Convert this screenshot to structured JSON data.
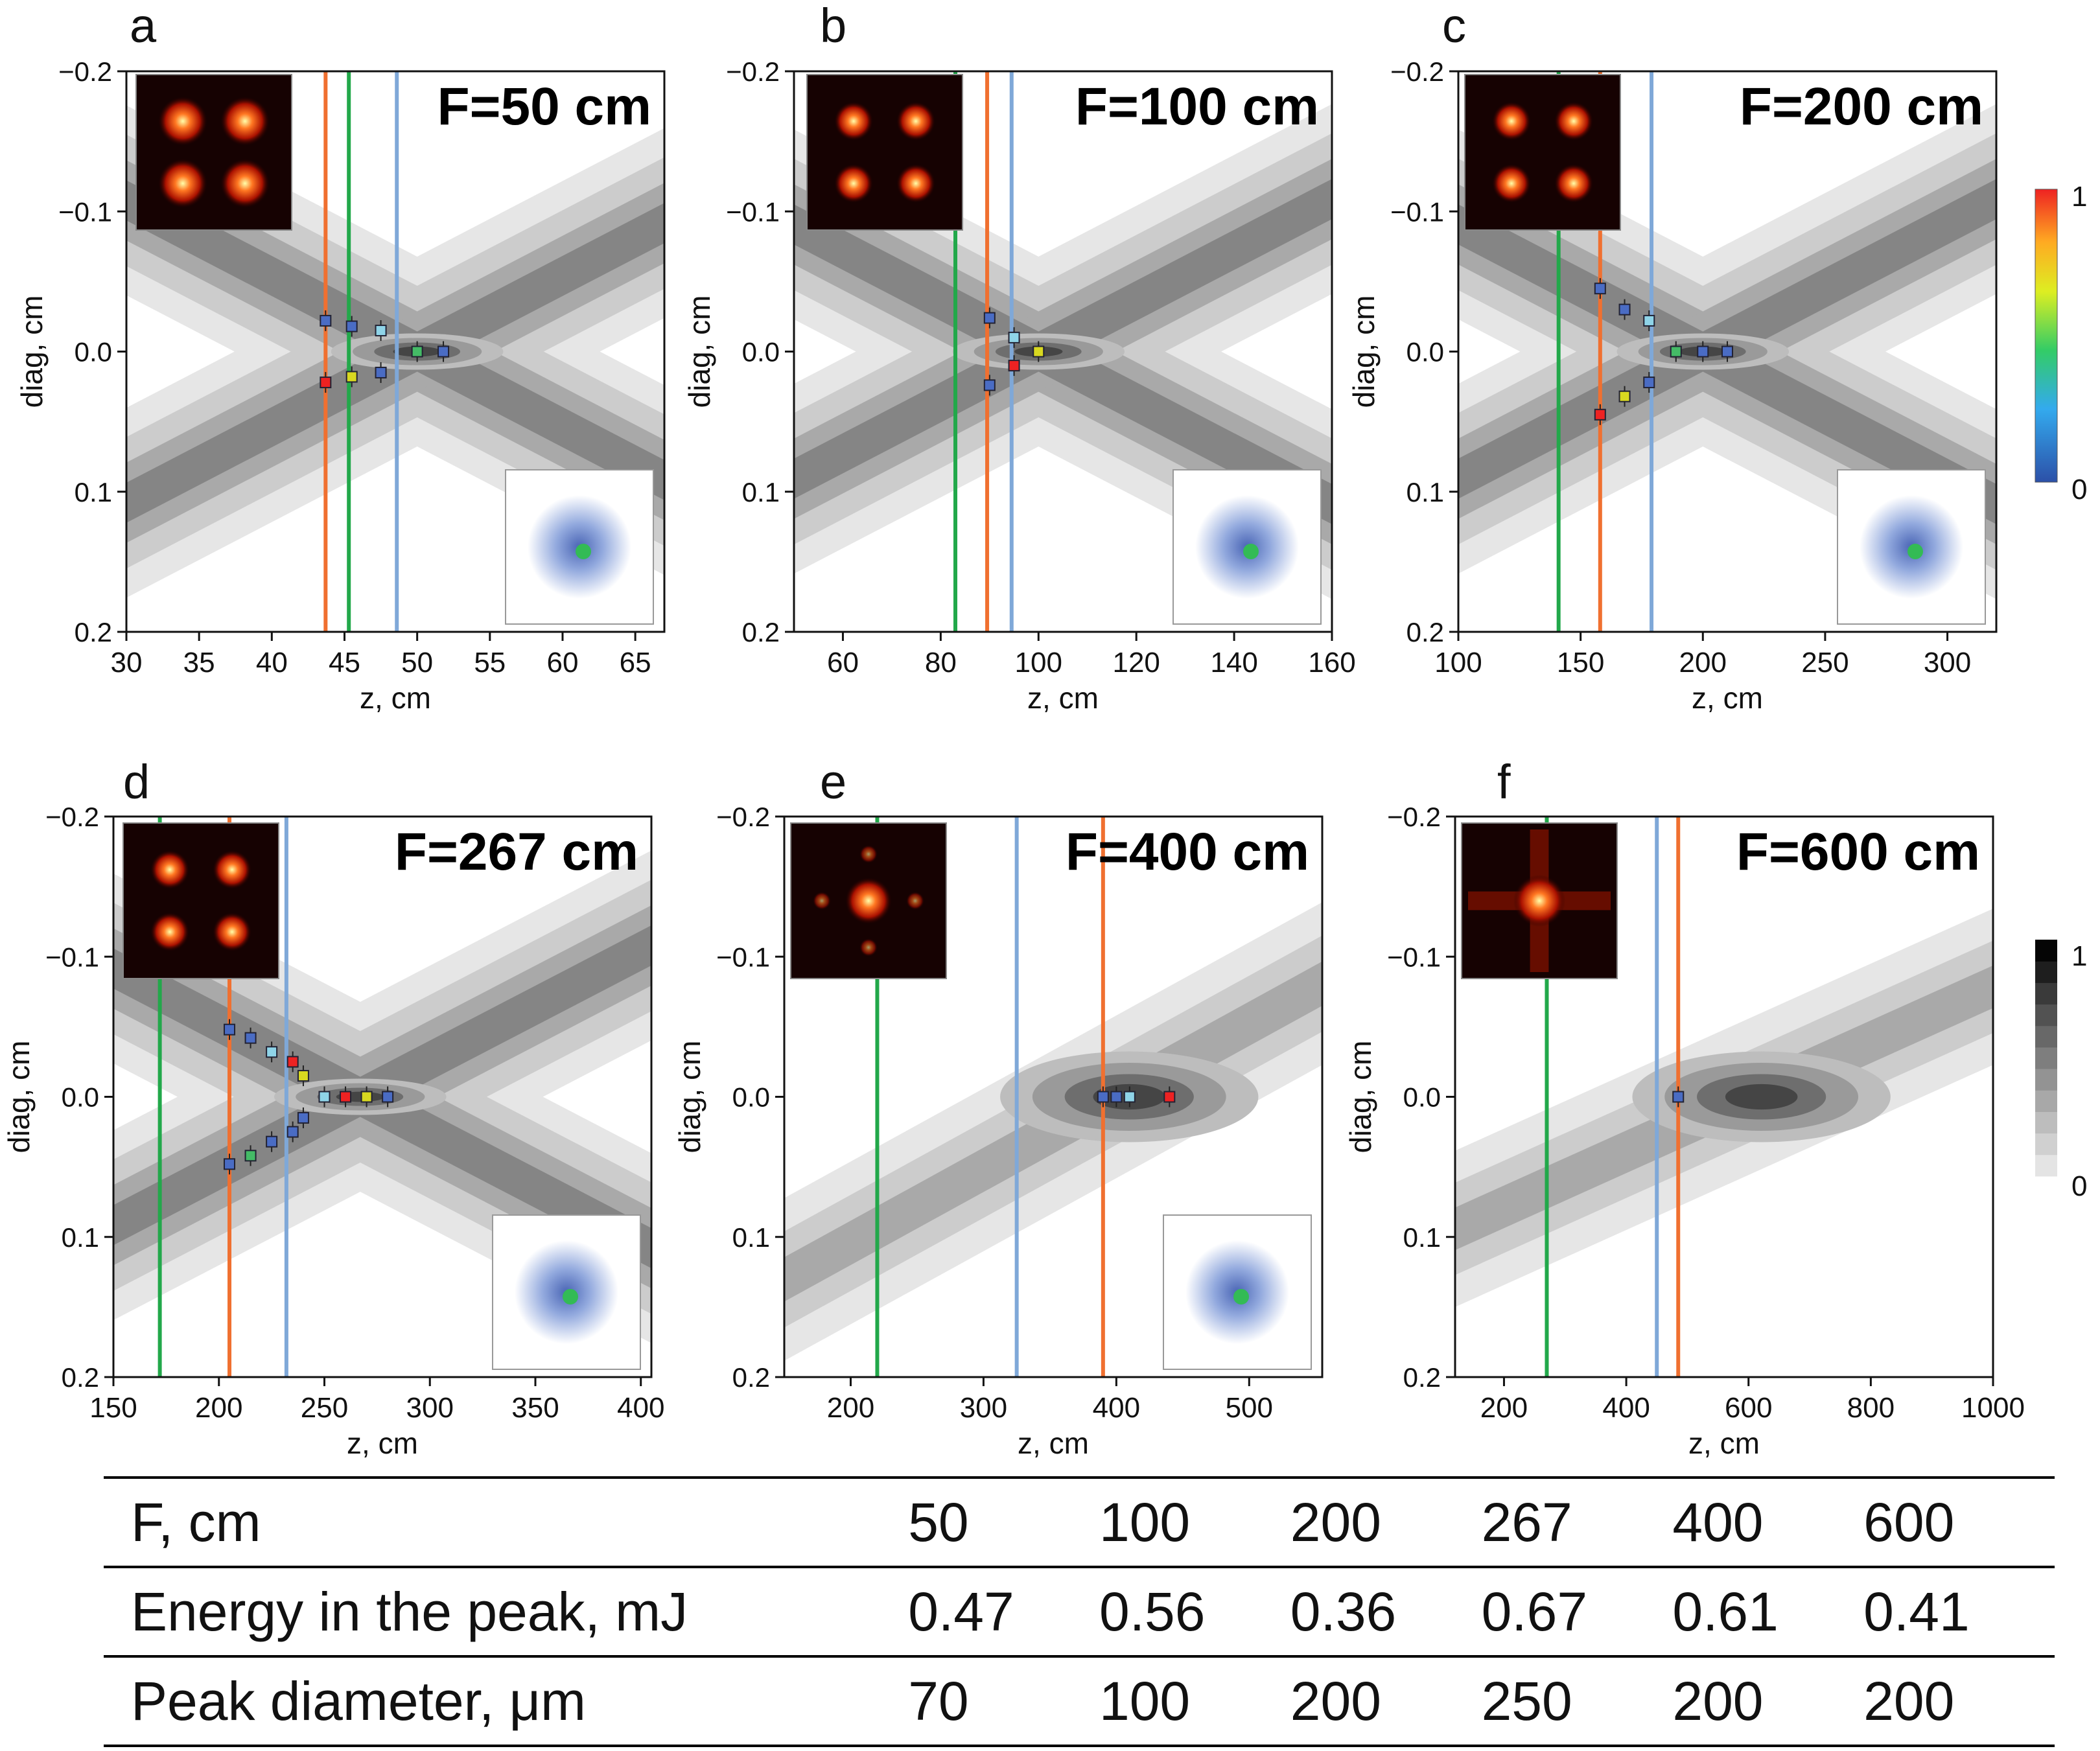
{
  "figure": {
    "colorbar_rainbow": {
      "max_label": "1",
      "min_label": "0"
    },
    "colorbar_gray": {
      "max_label": "1",
      "min_label": "0"
    },
    "colors": {
      "orange": "#f07030",
      "green": "#22a84a",
      "blue": "#7fa8d8"
    }
  },
  "chart_data": [
    {
      "type": "contour",
      "panel": "a",
      "title": "F=50 cm",
      "xlabel": "z, cm",
      "ylabel": "diag, cm",
      "xlim": [
        30,
        67
      ],
      "xticks": [
        30,
        35,
        40,
        45,
        50,
        55,
        60,
        65
      ],
      "ylim": [
        -0.2,
        0.2
      ],
      "yticks": [
        -0.2,
        -0.1,
        0.0,
        0.1,
        0.2
      ],
      "ytick_labels": [
        "−0.2",
        "−0.1",
        "0.0",
        "0.1",
        "0.2"
      ],
      "focus": 50,
      "lines": [
        {
          "color": "orange",
          "z": 43.7
        },
        {
          "color": "green",
          "z": 45.3
        },
        {
          "color": "blue",
          "z": 48.6
        }
      ],
      "markers": [
        {
          "z": 43.7,
          "d": -0.022
        },
        {
          "z": 45.5,
          "d": -0.018
        },
        {
          "z": 47.5,
          "d": -0.015
        },
        {
          "z": 43.7,
          "d": 0.022
        },
        {
          "z": 45.5,
          "d": 0.018
        },
        {
          "z": 47.5,
          "d": 0.015
        },
        {
          "z": 50,
          "d": 0.0
        },
        {
          "z": 51.8,
          "d": 0.0
        }
      ]
    },
    {
      "type": "contour",
      "panel": "b",
      "title": "F=100 cm",
      "xlabel": "z, cm",
      "ylabel": "diag, cm",
      "xlim": [
        50,
        160
      ],
      "xticks": [
        60,
        80,
        100,
        120,
        140,
        160
      ],
      "ylim": [
        -0.2,
        0.2
      ],
      "yticks": [
        -0.2,
        -0.1,
        0.0,
        0.1,
        0.2
      ],
      "ytick_labels": [
        "−0.2",
        "−0.1",
        "0.0",
        "0.1",
        "0.2"
      ],
      "focus": 100,
      "lines": [
        {
          "color": "green",
          "z": 83
        },
        {
          "color": "orange",
          "z": 89.5
        },
        {
          "color": "blue",
          "z": 94.5
        }
      ],
      "markers": [
        {
          "z": 90,
          "d": -0.024
        },
        {
          "z": 90,
          "d": 0.024
        },
        {
          "z": 95,
          "d": -0.01
        },
        {
          "z": 95,
          "d": 0.01
        },
        {
          "z": 100,
          "d": 0.0
        }
      ]
    },
    {
      "type": "contour",
      "panel": "c",
      "title": "F=200 cm",
      "xlabel": "z, cm",
      "ylabel": "diag, cm",
      "xlim": [
        100,
        320
      ],
      "xticks": [
        100,
        150,
        200,
        250,
        300
      ],
      "ylim": [
        -0.2,
        0.2
      ],
      "yticks": [
        -0.2,
        -0.1,
        0.0,
        0.1,
        0.2
      ],
      "ytick_labels": [
        "−0.2",
        "−0.1",
        "0.0",
        "0.1",
        "0.2"
      ],
      "focus": 200,
      "lines": [
        {
          "color": "green",
          "z": 141
        },
        {
          "color": "orange",
          "z": 158
        },
        {
          "color": "blue",
          "z": 179
        }
      ],
      "markers": [
        {
          "z": 158,
          "d": -0.045
        },
        {
          "z": 168,
          "d": -0.03
        },
        {
          "z": 178,
          "d": -0.022
        },
        {
          "z": 158,
          "d": 0.045
        },
        {
          "z": 168,
          "d": 0.032
        },
        {
          "z": 178,
          "d": 0.022
        },
        {
          "z": 189,
          "d": 0.0
        },
        {
          "z": 200,
          "d": 0.0
        },
        {
          "z": 210,
          "d": 0.0
        }
      ]
    },
    {
      "type": "contour",
      "panel": "d",
      "title": "F=267 cm",
      "xlabel": "z, cm",
      "ylabel": "diag, cm",
      "xlim": [
        150,
        405
      ],
      "xticks": [
        150,
        200,
        250,
        300,
        350,
        400
      ],
      "ylim": [
        -0.2,
        0.2
      ],
      "yticks": [
        -0.2,
        -0.1,
        0.0,
        0.1,
        0.2
      ],
      "ytick_labels": [
        "−0.2",
        "−0.1",
        "0.0",
        "0.1",
        "0.2"
      ],
      "focus": 267,
      "lines": [
        {
          "color": "green",
          "z": 172
        },
        {
          "color": "orange",
          "z": 205
        },
        {
          "color": "blue",
          "z": 232
        }
      ],
      "markers": [
        {
          "z": 205,
          "d": -0.048
        },
        {
          "z": 215,
          "d": -0.042
        },
        {
          "z": 225,
          "d": -0.032
        },
        {
          "z": 235,
          "d": -0.025
        },
        {
          "z": 240,
          "d": -0.015
        },
        {
          "z": 205,
          "d": 0.048
        },
        {
          "z": 215,
          "d": 0.042
        },
        {
          "z": 225,
          "d": 0.032
        },
        {
          "z": 235,
          "d": 0.025
        },
        {
          "z": 240,
          "d": 0.015
        },
        {
          "z": 250,
          "d": 0.0
        },
        {
          "z": 260,
          "d": 0.0
        },
        {
          "z": 270,
          "d": 0.0
        },
        {
          "z": 280,
          "d": 0.0
        }
      ]
    },
    {
      "type": "contour",
      "panel": "e",
      "title": "F=400 cm",
      "xlabel": "z, cm",
      "ylabel": "diag, cm",
      "xlim": [
        150,
        555
      ],
      "xticks": [
        200,
        300,
        400,
        500
      ],
      "ylim": [
        -0.2,
        0.2
      ],
      "yticks": [
        -0.2,
        -0.1,
        0.0,
        0.1,
        0.2
      ],
      "ytick_labels": [
        "−0.2",
        "−0.1",
        "0.0",
        "0.1",
        "0.2"
      ],
      "focus": 400,
      "lines": [
        {
          "color": "green",
          "z": 220
        },
        {
          "color": "blue",
          "z": 325
        },
        {
          "color": "orange",
          "z": 390
        }
      ],
      "markers": [
        {
          "z": 390,
          "d": 0.0
        },
        {
          "z": 400,
          "d": 0.0
        },
        {
          "z": 410,
          "d": 0.0
        },
        {
          "z": 440,
          "d": 0.0
        }
      ]
    },
    {
      "type": "contour",
      "panel": "f",
      "title": "F=600 cm",
      "xlabel": "z, cm",
      "ylabel": "diag, cm",
      "xlim": [
        120,
        1000
      ],
      "xticks": [
        200,
        400,
        600,
        800,
        1000
      ],
      "ylim": [
        -0.2,
        0.2
      ],
      "yticks": [
        -0.2,
        -0.1,
        0.0,
        0.1,
        0.2
      ],
      "ytick_labels": [
        "−0.2",
        "−0.1",
        "0.0",
        "0.1",
        "0.2"
      ],
      "focus": 600,
      "lines": [
        {
          "color": "green",
          "z": 270
        },
        {
          "color": "blue",
          "z": 450
        },
        {
          "color": "orange",
          "z": 485
        }
      ],
      "markers": [
        {
          "z": 485,
          "d": 0.0
        }
      ]
    }
  ],
  "table": {
    "rows": [
      {
        "label": "F, cm",
        "values": [
          "50",
          "100",
          "200",
          "267",
          "400",
          "600"
        ]
      },
      {
        "label": "Energy in the peak, mJ",
        "values": [
          "0.47",
          "0.56",
          "0.36",
          "0.67",
          "0.61",
          "0.41"
        ]
      },
      {
        "label": "Peak diameter, μm",
        "values": [
          "70",
          "100",
          "200",
          "250",
          "200",
          "200"
        ]
      }
    ]
  }
}
